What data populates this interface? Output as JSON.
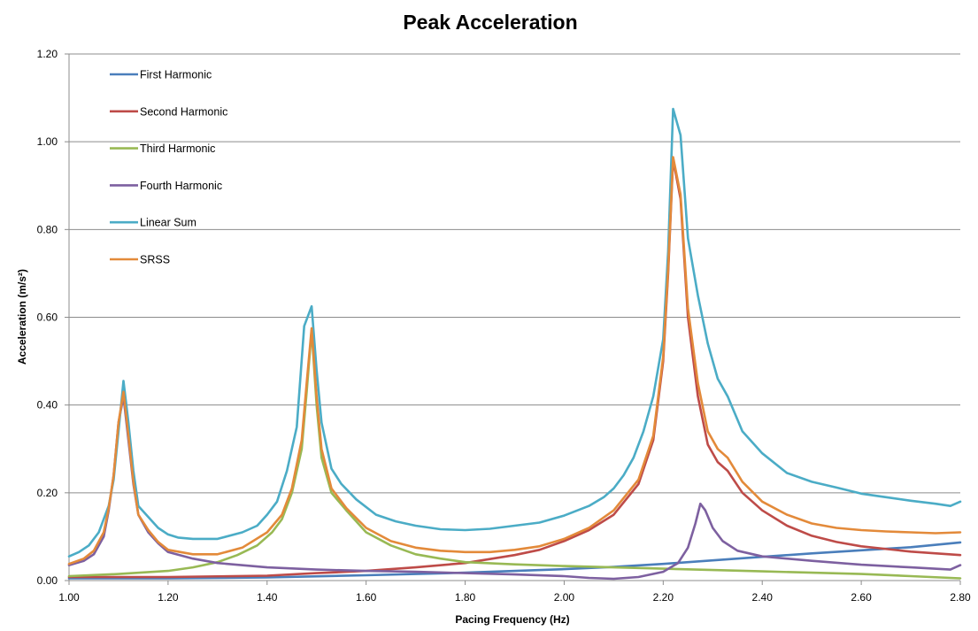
{
  "chart_data": {
    "type": "line",
    "title": "Peak Acceleration",
    "xlabel": "Pacing Frequency (Hz)",
    "ylabel": "Acceleration (m/s²)",
    "xlim": [
      1.0,
      2.8
    ],
    "ylim": [
      0.0,
      1.2
    ],
    "x_ticks": [
      "1.00",
      "1.20",
      "1.40",
      "1.60",
      "1.80",
      "2.00",
      "2.20",
      "2.40",
      "2.60",
      "2.80"
    ],
    "y_ticks": [
      "0.00",
      "0.20",
      "0.40",
      "0.60",
      "0.80",
      "1.00",
      "1.20"
    ],
    "grid": "horizontal",
    "legend_position": "top-left",
    "series": [
      {
        "name": "First Harmonic",
        "color": "#4A7EBB",
        "points": [
          [
            1.0,
            0.005
          ],
          [
            1.2,
            0.005
          ],
          [
            1.4,
            0.007
          ],
          [
            1.6,
            0.012
          ],
          [
            1.8,
            0.018
          ],
          [
            2.0,
            0.026
          ],
          [
            2.1,
            0.031
          ],
          [
            2.2,
            0.038
          ],
          [
            2.3,
            0.046
          ],
          [
            2.4,
            0.054
          ],
          [
            2.5,
            0.062
          ],
          [
            2.6,
            0.069
          ],
          [
            2.7,
            0.076
          ],
          [
            2.8,
            0.087
          ]
        ]
      },
      {
        "name": "Second Harmonic",
        "color": "#BE4B48",
        "points": [
          [
            1.0,
            0.008
          ],
          [
            1.2,
            0.008
          ],
          [
            1.4,
            0.011
          ],
          [
            1.5,
            0.017
          ],
          [
            1.6,
            0.022
          ],
          [
            1.7,
            0.03
          ],
          [
            1.8,
            0.04
          ],
          [
            1.9,
            0.058
          ],
          [
            1.95,
            0.07
          ],
          [
            2.0,
            0.09
          ],
          [
            2.05,
            0.115
          ],
          [
            2.1,
            0.15
          ],
          [
            2.15,
            0.22
          ],
          [
            2.18,
            0.32
          ],
          [
            2.2,
            0.5
          ],
          [
            2.21,
            0.7
          ],
          [
            2.22,
            0.96
          ],
          [
            2.235,
            0.87
          ],
          [
            2.25,
            0.6
          ],
          [
            2.27,
            0.42
          ],
          [
            2.29,
            0.31
          ],
          [
            2.31,
            0.27
          ],
          [
            2.33,
            0.25
          ],
          [
            2.36,
            0.2
          ],
          [
            2.4,
            0.16
          ],
          [
            2.45,
            0.125
          ],
          [
            2.5,
            0.102
          ],
          [
            2.55,
            0.088
          ],
          [
            2.6,
            0.078
          ],
          [
            2.7,
            0.066
          ],
          [
            2.8,
            0.058
          ]
        ]
      },
      {
        "name": "Third Harmonic",
        "color": "#98B954",
        "points": [
          [
            1.0,
            0.01
          ],
          [
            1.1,
            0.015
          ],
          [
            1.2,
            0.022
          ],
          [
            1.25,
            0.03
          ],
          [
            1.3,
            0.042
          ],
          [
            1.34,
            0.058
          ],
          [
            1.38,
            0.08
          ],
          [
            1.41,
            0.11
          ],
          [
            1.43,
            0.14
          ],
          [
            1.45,
            0.2
          ],
          [
            1.47,
            0.3
          ],
          [
            1.48,
            0.43
          ],
          [
            1.49,
            0.57
          ],
          [
            1.5,
            0.4
          ],
          [
            1.51,
            0.28
          ],
          [
            1.53,
            0.2
          ],
          [
            1.56,
            0.16
          ],
          [
            1.6,
            0.11
          ],
          [
            1.65,
            0.08
          ],
          [
            1.7,
            0.06
          ],
          [
            1.75,
            0.05
          ],
          [
            1.8,
            0.042
          ],
          [
            1.9,
            0.037
          ],
          [
            2.0,
            0.033
          ],
          [
            2.1,
            0.03
          ],
          [
            2.2,
            0.027
          ],
          [
            2.3,
            0.024
          ],
          [
            2.4,
            0.021
          ],
          [
            2.5,
            0.018
          ],
          [
            2.6,
            0.015
          ],
          [
            2.7,
            0.01
          ],
          [
            2.8,
            0.005
          ]
        ]
      },
      {
        "name": "Fourth Harmonic",
        "color": "#7D60A0",
        "points": [
          [
            1.0,
            0.035
          ],
          [
            1.03,
            0.045
          ],
          [
            1.05,
            0.06
          ],
          [
            1.07,
            0.1
          ],
          [
            1.08,
            0.16
          ],
          [
            1.09,
            0.24
          ],
          [
            1.1,
            0.36
          ],
          [
            1.11,
            0.42
          ],
          [
            1.12,
            0.32
          ],
          [
            1.13,
            0.22
          ],
          [
            1.14,
            0.15
          ],
          [
            1.16,
            0.11
          ],
          [
            1.18,
            0.085
          ],
          [
            1.2,
            0.065
          ],
          [
            1.25,
            0.05
          ],
          [
            1.3,
            0.04
          ],
          [
            1.4,
            0.03
          ],
          [
            1.5,
            0.025
          ],
          [
            1.6,
            0.022
          ],
          [
            1.7,
            0.02
          ],
          [
            1.8,
            0.017
          ],
          [
            1.9,
            0.014
          ],
          [
            2.0,
            0.01
          ],
          [
            2.05,
            0.006
          ],
          [
            2.1,
            0.004
          ],
          [
            2.15,
            0.008
          ],
          [
            2.2,
            0.02
          ],
          [
            2.23,
            0.04
          ],
          [
            2.25,
            0.075
          ],
          [
            2.265,
            0.13
          ],
          [
            2.275,
            0.175
          ],
          [
            2.285,
            0.16
          ],
          [
            2.3,
            0.12
          ],
          [
            2.32,
            0.09
          ],
          [
            2.35,
            0.068
          ],
          [
            2.4,
            0.055
          ],
          [
            2.5,
            0.045
          ],
          [
            2.6,
            0.036
          ],
          [
            2.7,
            0.03
          ],
          [
            2.78,
            0.025
          ],
          [
            2.8,
            0.035
          ]
        ]
      },
      {
        "name": "Linear Sum",
        "color": "#4BACC6",
        "points": [
          [
            1.0,
            0.055
          ],
          [
            1.02,
            0.065
          ],
          [
            1.04,
            0.08
          ],
          [
            1.06,
            0.11
          ],
          [
            1.07,
            0.14
          ],
          [
            1.08,
            0.17
          ],
          [
            1.09,
            0.23
          ],
          [
            1.1,
            0.34
          ],
          [
            1.11,
            0.455
          ],
          [
            1.12,
            0.36
          ],
          [
            1.13,
            0.25
          ],
          [
            1.14,
            0.17
          ],
          [
            1.16,
            0.145
          ],
          [
            1.18,
            0.12
          ],
          [
            1.2,
            0.105
          ],
          [
            1.22,
            0.098
          ],
          [
            1.25,
            0.095
          ],
          [
            1.3,
            0.095
          ],
          [
            1.35,
            0.11
          ],
          [
            1.38,
            0.125
          ],
          [
            1.4,
            0.15
          ],
          [
            1.42,
            0.18
          ],
          [
            1.44,
            0.25
          ],
          [
            1.46,
            0.35
          ],
          [
            1.475,
            0.58
          ],
          [
            1.49,
            0.625
          ],
          [
            1.5,
            0.48
          ],
          [
            1.51,
            0.36
          ],
          [
            1.53,
            0.255
          ],
          [
            1.55,
            0.22
          ],
          [
            1.58,
            0.185
          ],
          [
            1.62,
            0.15
          ],
          [
            1.66,
            0.135
          ],
          [
            1.7,
            0.125
          ],
          [
            1.75,
            0.117
          ],
          [
            1.8,
            0.115
          ],
          [
            1.85,
            0.118
          ],
          [
            1.9,
            0.125
          ],
          [
            1.95,
            0.132
          ],
          [
            2.0,
            0.148
          ],
          [
            2.05,
            0.17
          ],
          [
            2.08,
            0.19
          ],
          [
            2.1,
            0.21
          ],
          [
            2.12,
            0.24
          ],
          [
            2.14,
            0.28
          ],
          [
            2.16,
            0.34
          ],
          [
            2.18,
            0.42
          ],
          [
            2.2,
            0.55
          ],
          [
            2.21,
            0.75
          ],
          [
            2.22,
            1.075
          ],
          [
            2.235,
            1.015
          ],
          [
            2.25,
            0.78
          ],
          [
            2.27,
            0.65
          ],
          [
            2.29,
            0.54
          ],
          [
            2.31,
            0.46
          ],
          [
            2.33,
            0.42
          ],
          [
            2.36,
            0.34
          ],
          [
            2.4,
            0.29
          ],
          [
            2.45,
            0.245
          ],
          [
            2.5,
            0.225
          ],
          [
            2.55,
            0.212
          ],
          [
            2.6,
            0.198
          ],
          [
            2.65,
            0.19
          ],
          [
            2.7,
            0.182
          ],
          [
            2.75,
            0.175
          ],
          [
            2.78,
            0.17
          ],
          [
            2.8,
            0.18
          ]
        ]
      },
      {
        "name": "SRSS",
        "color": "#E38A3A",
        "points": [
          [
            1.0,
            0.038
          ],
          [
            1.03,
            0.05
          ],
          [
            1.05,
            0.068
          ],
          [
            1.07,
            0.11
          ],
          [
            1.08,
            0.165
          ],
          [
            1.09,
            0.24
          ],
          [
            1.1,
            0.36
          ],
          [
            1.11,
            0.43
          ],
          [
            1.12,
            0.33
          ],
          [
            1.13,
            0.225
          ],
          [
            1.14,
            0.15
          ],
          [
            1.16,
            0.115
          ],
          [
            1.18,
            0.088
          ],
          [
            1.2,
            0.07
          ],
          [
            1.25,
            0.06
          ],
          [
            1.3,
            0.06
          ],
          [
            1.35,
            0.075
          ],
          [
            1.4,
            0.11
          ],
          [
            1.43,
            0.15
          ],
          [
            1.45,
            0.21
          ],
          [
            1.47,
            0.32
          ],
          [
            1.48,
            0.45
          ],
          [
            1.49,
            0.575
          ],
          [
            1.5,
            0.42
          ],
          [
            1.51,
            0.3
          ],
          [
            1.53,
            0.21
          ],
          [
            1.56,
            0.165
          ],
          [
            1.6,
            0.12
          ],
          [
            1.65,
            0.09
          ],
          [
            1.7,
            0.075
          ],
          [
            1.75,
            0.068
          ],
          [
            1.8,
            0.065
          ],
          [
            1.85,
            0.065
          ],
          [
            1.9,
            0.07
          ],
          [
            1.95,
            0.078
          ],
          [
            2.0,
            0.095
          ],
          [
            2.05,
            0.12
          ],
          [
            2.1,
            0.16
          ],
          [
            2.15,
            0.23
          ],
          [
            2.18,
            0.33
          ],
          [
            2.2,
            0.51
          ],
          [
            2.21,
            0.71
          ],
          [
            2.22,
            0.965
          ],
          [
            2.235,
            0.88
          ],
          [
            2.25,
            0.62
          ],
          [
            2.27,
            0.45
          ],
          [
            2.29,
            0.34
          ],
          [
            2.31,
            0.3
          ],
          [
            2.33,
            0.28
          ],
          [
            2.36,
            0.225
          ],
          [
            2.4,
            0.18
          ],
          [
            2.45,
            0.15
          ],
          [
            2.5,
            0.13
          ],
          [
            2.55,
            0.12
          ],
          [
            2.6,
            0.115
          ],
          [
            2.65,
            0.112
          ],
          [
            2.7,
            0.11
          ],
          [
            2.75,
            0.108
          ],
          [
            2.8,
            0.11
          ]
        ]
      }
    ]
  }
}
